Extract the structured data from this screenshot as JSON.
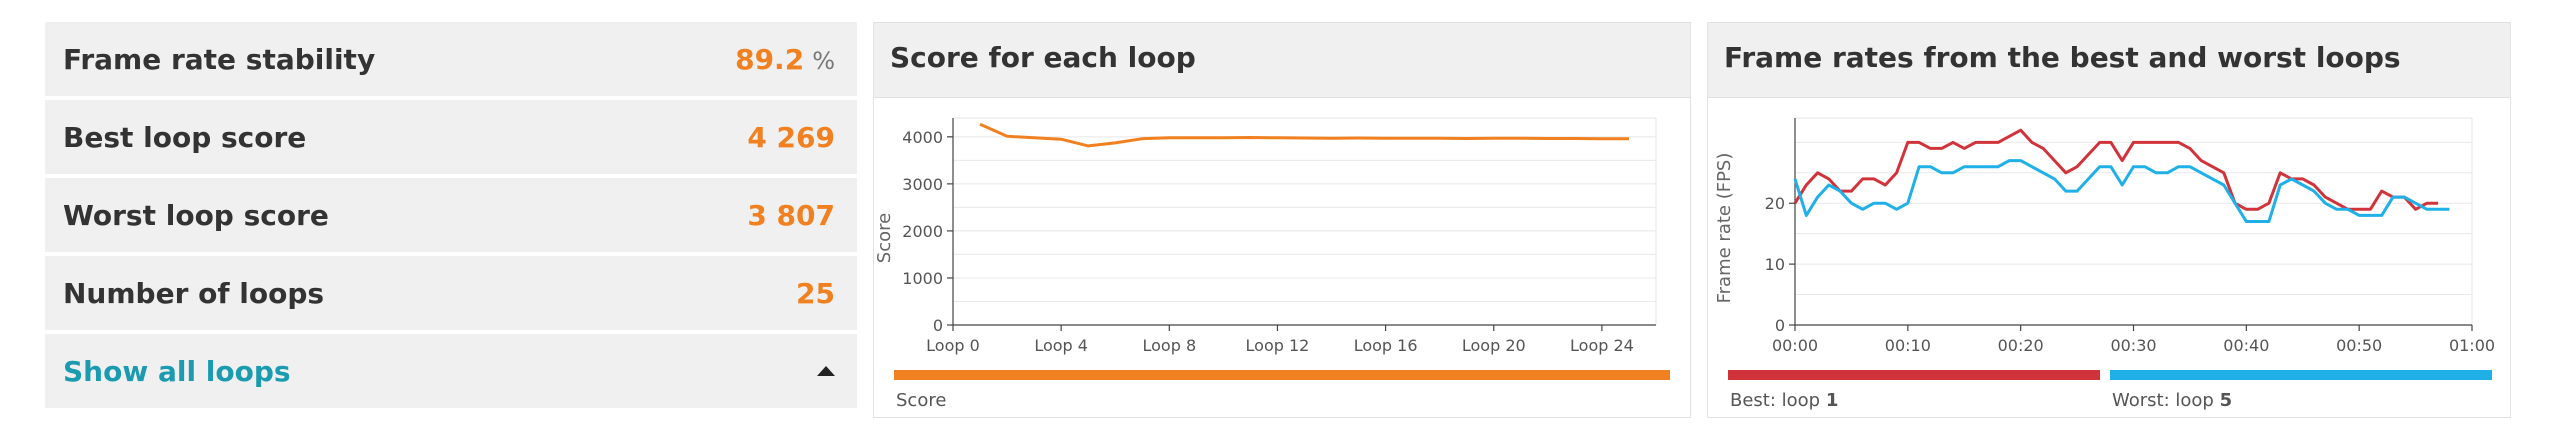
{
  "stats": {
    "rows": [
      {
        "label": "Frame rate stability",
        "value": "89.2",
        "unit": "%"
      },
      {
        "label": "Best loop score",
        "value": "4 269"
      },
      {
        "label": "Worst loop score",
        "value": "3 807"
      },
      {
        "label": "Number of loops",
        "value": "25"
      }
    ],
    "show_all_label": "Show all loops"
  },
  "colors": {
    "accent": "#f08020",
    "link": "#1a9bb0",
    "best": "#d0343a",
    "worst": "#1fb0e8"
  },
  "score_chart": {
    "title": "Score for each loop",
    "ylabel": "Score",
    "legend": "Score",
    "chart_data": {
      "type": "line",
      "x": [
        1,
        2,
        3,
        4,
        5,
        6,
        7,
        8,
        9,
        10,
        11,
        12,
        13,
        14,
        15,
        16,
        17,
        18,
        19,
        20,
        21,
        22,
        23,
        24,
        25
      ],
      "values": [
        4269,
        4010,
        3980,
        3950,
        3807,
        3870,
        3960,
        3980,
        3980,
        3980,
        3985,
        3980,
        3975,
        3970,
        3975,
        3970,
        3970,
        3970,
        3965,
        3970,
        3970,
        3965,
        3965,
        3960,
        3960
      ],
      "ylim": [
        0,
        4400
      ],
      "xlim": [
        0,
        26
      ],
      "yticks": [
        0,
        1000,
        2000,
        3000,
        4000
      ],
      "ytick_labels": [
        "0",
        "1000",
        "2000",
        "3000",
        "4000"
      ],
      "xticks": [
        0,
        4,
        8,
        12,
        16,
        20,
        24
      ],
      "xtick_labels": [
        "Loop 0",
        "Loop 4",
        "Loop 8",
        "Loop 12",
        "Loop 16",
        "Loop 20",
        "Loop 24"
      ],
      "grid": true
    }
  },
  "fps_chart": {
    "title": "Frame rates from the best and worst loops",
    "ylabel": "Frame rate (FPS)",
    "legend": {
      "best_prefix": "Best: loop ",
      "best_num": "1",
      "worst_prefix": "Worst: loop ",
      "worst_num": "5"
    },
    "chart_data": {
      "type": "line",
      "xlim": [
        0,
        60
      ],
      "ylim": [
        0,
        34
      ],
      "yticks": [
        0,
        10,
        20
      ],
      "ytick_labels": [
        "0",
        "10",
        "20"
      ],
      "xticks": [
        0,
        10,
        20,
        30,
        40,
        50,
        60
      ],
      "xtick_labels": [
        "00:00",
        "00:10",
        "00:20",
        "00:30",
        "00:40",
        "00:50",
        "01:00"
      ],
      "grid": true,
      "series": [
        {
          "name": "Best: loop 1",
          "x": [
            0,
            1,
            2,
            3,
            4,
            5,
            6,
            7,
            8,
            9,
            10,
            11,
            12,
            13,
            14,
            15,
            16,
            17,
            18,
            19,
            20,
            21,
            22,
            23,
            24,
            25,
            26,
            27,
            28,
            29,
            30,
            31,
            32,
            33,
            34,
            35,
            36,
            37,
            38,
            39,
            40,
            41,
            42,
            43,
            44,
            45,
            46,
            47,
            48,
            49,
            50,
            51,
            52,
            53,
            54,
            55,
            56,
            57
          ],
          "values": [
            20,
            23,
            25,
            24,
            22,
            22,
            24,
            24,
            23,
            25,
            30,
            30,
            29,
            29,
            30,
            29,
            30,
            30,
            30,
            31,
            32,
            30,
            29,
            27,
            25,
            26,
            28,
            30,
            30,
            27,
            30,
            30,
            30,
            30,
            30,
            29,
            27,
            26,
            25,
            20,
            19,
            19,
            20,
            25,
            24,
            24,
            23,
            21,
            20,
            19,
            19,
            19,
            22,
            21,
            21,
            19,
            20,
            20
          ]
        },
        {
          "name": "Worst: loop 5",
          "x": [
            0,
            1,
            2,
            3,
            4,
            5,
            6,
            7,
            8,
            9,
            10,
            11,
            12,
            13,
            14,
            15,
            16,
            17,
            18,
            19,
            20,
            21,
            22,
            23,
            24,
            25,
            26,
            27,
            28,
            29,
            30,
            31,
            32,
            33,
            34,
            35,
            36,
            37,
            38,
            39,
            40,
            41,
            42,
            43,
            44,
            45,
            46,
            47,
            48,
            49,
            50,
            51,
            52,
            53,
            54,
            55,
            56,
            57,
            58
          ],
          "values": [
            24,
            18,
            21,
            23,
            22,
            20,
            19,
            20,
            20,
            19,
            20,
            26,
            26,
            25,
            25,
            26,
            26,
            26,
            26,
            27,
            27,
            26,
            25,
            24,
            22,
            22,
            24,
            26,
            26,
            23,
            26,
            26,
            25,
            25,
            26,
            26,
            25,
            24,
            23,
            20,
            17,
            17,
            17,
            23,
            24,
            23,
            22,
            20,
            19,
            19,
            18,
            18,
            18,
            21,
            21,
            20,
            19,
            19,
            19
          ]
        }
      ]
    }
  }
}
